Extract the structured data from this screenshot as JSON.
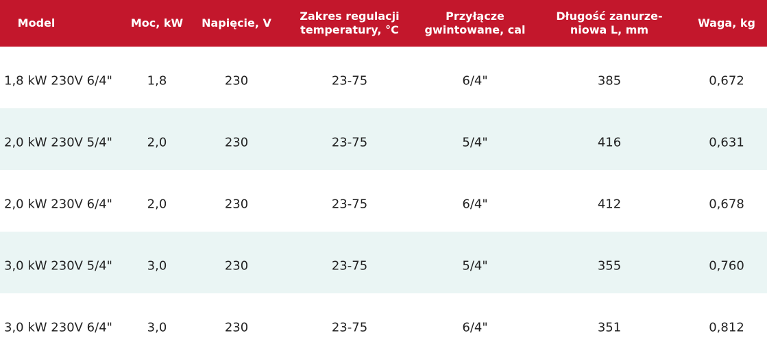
{
  "header": {
    "columns": [
      [
        "Model"
      ],
      [
        "Moc, kW"
      ],
      [
        "Napięcie, V"
      ],
      [
        "Zakres regulacji",
        "temperatury, °C"
      ],
      [
        "Przyłącze",
        "gwintowane, cal"
      ],
      [
        "Długość zanurze-",
        "niowa L, mm"
      ],
      [
        "Waga, kg"
      ]
    ]
  },
  "table": {
    "rows": [
      [
        "1,8 kW 230V 6/4\"",
        "1,8",
        "230",
        "23-75",
        "6/4\"",
        "385",
        "0,672"
      ],
      [
        "2,0 kW 230V 5/4\"",
        "2,0",
        "230",
        "23-75",
        "5/4\"",
        "416",
        "0,631"
      ],
      [
        "2,0 kW 230V 6/4\"",
        "2,0",
        "230",
        "23-75",
        "6/4\"",
        "412",
        "0,678"
      ],
      [
        "3,0 kW 230V 5/4\"",
        "3,0",
        "230",
        "23-75",
        "5/4\"",
        "355",
        "0,760"
      ],
      [
        "3,0 kW 230V 6/4\"",
        "3,0",
        "230",
        "23-75",
        "6/4\"",
        "351",
        "0,812"
      ]
    ]
  }
}
